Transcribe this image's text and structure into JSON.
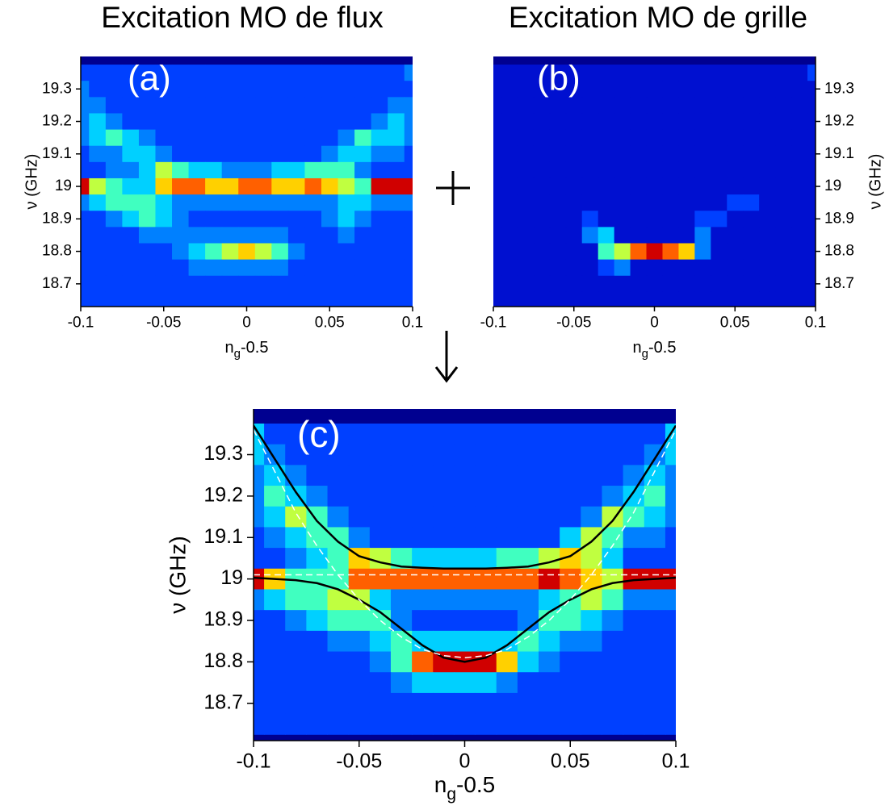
{
  "chart_data": [
    {
      "type": "heatmap",
      "title": "Excitation MO de flux",
      "panel_label": "(a)",
      "xlabel": [
        "n",
        "g",
        "-0.5"
      ],
      "ylabel": "ν (GHz)",
      "yaxis_side": "left",
      "xlim": [
        -0.1,
        0.1
      ],
      "ylim": [
        18.63,
        19.4
      ],
      "xticks": [
        -0.1,
        -0.05,
        0,
        0.05,
        0.1
      ],
      "yticks": [
        18.7,
        18.8,
        18.9,
        19,
        19.1,
        19.2,
        19.3
      ],
      "colormap": [
        "#000090",
        "#0010d0",
        "#0040ff",
        "#0080ff",
        "#00d0ff",
        "#40ffc0",
        "#c0ff40",
        "#ffd000",
        "#ff6000",
        "#d00000"
      ],
      "x": [
        -0.1,
        -0.09,
        -0.08,
        -0.07,
        -0.06,
        -0.05,
        -0.04,
        -0.03,
        -0.02,
        -0.01,
        0,
        0.01,
        0.02,
        0.03,
        0.04,
        0.05,
        0.06,
        0.07,
        0.08,
        0.09,
        0.1
      ],
      "y": [
        19.35,
        19.3,
        19.25,
        19.2,
        19.15,
        19.1,
        19.05,
        19,
        18.95,
        18.9,
        18.85,
        18.8,
        18.75,
        18.7,
        18.65
      ],
      "z": [
        [
          2,
          2,
          2,
          2,
          2,
          2,
          2,
          2,
          2,
          2,
          2,
          2,
          2,
          2,
          2,
          2,
          2,
          2,
          2,
          2,
          3
        ],
        [
          3,
          2,
          2,
          2,
          2,
          2,
          2,
          2,
          2,
          2,
          2,
          2,
          2,
          2,
          2,
          2,
          2,
          2,
          2,
          2,
          2
        ],
        [
          3,
          3,
          2,
          2,
          2,
          2,
          2,
          2,
          2,
          2,
          2,
          2,
          2,
          2,
          2,
          2,
          2,
          2,
          2,
          3,
          3
        ],
        [
          3,
          4,
          3,
          2,
          2,
          2,
          2,
          2,
          2,
          2,
          2,
          2,
          2,
          2,
          2,
          2,
          2,
          2,
          3,
          4,
          3
        ],
        [
          3,
          4,
          5,
          4,
          3,
          2,
          2,
          2,
          2,
          2,
          2,
          2,
          2,
          2,
          2,
          2,
          3,
          5,
          4,
          4,
          3
        ],
        [
          2,
          3,
          3,
          4,
          4,
          3,
          2,
          2,
          2,
          2,
          2,
          2,
          2,
          2,
          2,
          3,
          4,
          4,
          3,
          3,
          2
        ],
        [
          2,
          2,
          3,
          3,
          4,
          6,
          5,
          4,
          4,
          3,
          3,
          3,
          4,
          4,
          5,
          5,
          5,
          3,
          2,
          2,
          2
        ],
        [
          9,
          6,
          5,
          4,
          4,
          7,
          8,
          8,
          7,
          7,
          8,
          8,
          7,
          7,
          8,
          7,
          6,
          5,
          9,
          9,
          9
        ],
        [
          3,
          4,
          5,
          5,
          5,
          4,
          3,
          3,
          3,
          3,
          3,
          3,
          3,
          3,
          3,
          3,
          4,
          4,
          3,
          3,
          3
        ],
        [
          2,
          2,
          3,
          4,
          5,
          4,
          3,
          2,
          2,
          2,
          2,
          2,
          2,
          2,
          2,
          3,
          4,
          3,
          2,
          2,
          2
        ],
        [
          2,
          2,
          2,
          2,
          3,
          3,
          3,
          3,
          3,
          3,
          3,
          3,
          3,
          2,
          2,
          2,
          3,
          2,
          2,
          2,
          2
        ],
        [
          2,
          2,
          2,
          2,
          2,
          2,
          3,
          4,
          5,
          6,
          7,
          6,
          5,
          3,
          2,
          2,
          2,
          2,
          2,
          2,
          2
        ],
        [
          2,
          2,
          2,
          2,
          2,
          2,
          2,
          3,
          3,
          3,
          3,
          3,
          3,
          2,
          2,
          2,
          2,
          2,
          2,
          2,
          2
        ],
        [
          2,
          2,
          2,
          2,
          2,
          2,
          2,
          2,
          2,
          2,
          2,
          2,
          2,
          2,
          2,
          2,
          2,
          2,
          2,
          2,
          2
        ],
        [
          2,
          2,
          2,
          2,
          2,
          2,
          2,
          2,
          2,
          2,
          2,
          2,
          2,
          2,
          2,
          2,
          2,
          2,
          2,
          2,
          2
        ]
      ]
    },
    {
      "type": "heatmap",
      "title": "Excitation MO de grille",
      "panel_label": "(b)",
      "xlabel": [
        "n",
        "g",
        "-0.5"
      ],
      "ylabel": "ν (GHz)",
      "yaxis_side": "right",
      "xlim": [
        -0.1,
        0.1
      ],
      "ylim": [
        18.63,
        19.4
      ],
      "xticks": [
        -0.1,
        -0.05,
        0,
        0.05,
        0.1
      ],
      "yticks": [
        18.7,
        18.8,
        18.9,
        19,
        19.1,
        19.2,
        19.3
      ],
      "colormap": [
        "#000090",
        "#0010d0",
        "#0040ff",
        "#0080ff",
        "#00d0ff",
        "#40ffc0",
        "#c0ff40",
        "#ffd000",
        "#ff6000",
        "#d00000"
      ],
      "x": [
        -0.1,
        -0.09,
        -0.08,
        -0.07,
        -0.06,
        -0.05,
        -0.04,
        -0.03,
        -0.02,
        -0.01,
        0,
        0.01,
        0.02,
        0.03,
        0.04,
        0.05,
        0.06,
        0.07,
        0.08,
        0.09,
        0.1
      ],
      "y": [
        19.35,
        19.3,
        19.25,
        19.2,
        19.15,
        19.1,
        19.05,
        19,
        18.95,
        18.9,
        18.85,
        18.8,
        18.75,
        18.7,
        18.65
      ],
      "z": [
        [
          1,
          1,
          1,
          1,
          1,
          1,
          1,
          1,
          1,
          1,
          1,
          1,
          1,
          1,
          1,
          1,
          1,
          1,
          1,
          1,
          2
        ],
        [
          1,
          1,
          1,
          1,
          1,
          1,
          1,
          1,
          1,
          1,
          1,
          1,
          1,
          1,
          1,
          1,
          1,
          1,
          1,
          1,
          1
        ],
        [
          1,
          1,
          1,
          1,
          1,
          1,
          1,
          1,
          1,
          1,
          1,
          1,
          1,
          1,
          1,
          1,
          1,
          1,
          1,
          1,
          1
        ],
        [
          1,
          1,
          1,
          1,
          1,
          1,
          1,
          1,
          1,
          1,
          1,
          1,
          1,
          1,
          1,
          1,
          1,
          1,
          1,
          1,
          1
        ],
        [
          1,
          1,
          1,
          1,
          1,
          1,
          1,
          1,
          1,
          1,
          1,
          1,
          1,
          1,
          1,
          1,
          1,
          1,
          1,
          1,
          1
        ],
        [
          1,
          1,
          1,
          1,
          1,
          1,
          1,
          1,
          1,
          1,
          1,
          1,
          1,
          1,
          1,
          1,
          1,
          1,
          1,
          1,
          1
        ],
        [
          1,
          1,
          1,
          1,
          1,
          1,
          1,
          1,
          1,
          1,
          1,
          1,
          1,
          1,
          1,
          1,
          1,
          1,
          1,
          1,
          1
        ],
        [
          1,
          1,
          1,
          1,
          1,
          1,
          1,
          1,
          1,
          1,
          1,
          1,
          1,
          1,
          1,
          1,
          1,
          1,
          1,
          1,
          1
        ],
        [
          1,
          1,
          1,
          1,
          1,
          1,
          1,
          1,
          1,
          1,
          1,
          1,
          1,
          1,
          1,
          2,
          2,
          1,
          1,
          1,
          1
        ],
        [
          1,
          1,
          1,
          1,
          1,
          1,
          2,
          1,
          1,
          1,
          1,
          1,
          1,
          2,
          2,
          1,
          1,
          1,
          1,
          1,
          1
        ],
        [
          1,
          1,
          1,
          1,
          1,
          1,
          3,
          4,
          1,
          1,
          1,
          1,
          1,
          3,
          1,
          1,
          1,
          1,
          1,
          1,
          1
        ],
        [
          1,
          1,
          1,
          1,
          1,
          1,
          1,
          5,
          6,
          8,
          9,
          8,
          7,
          3,
          1,
          1,
          1,
          1,
          1,
          1,
          1
        ],
        [
          1,
          1,
          1,
          1,
          1,
          1,
          1,
          2,
          3,
          1,
          1,
          1,
          1,
          1,
          1,
          1,
          1,
          1,
          1,
          1,
          1
        ],
        [
          1,
          1,
          1,
          1,
          1,
          1,
          1,
          1,
          1,
          1,
          1,
          1,
          1,
          1,
          1,
          1,
          1,
          1,
          1,
          1,
          1
        ],
        [
          1,
          1,
          1,
          1,
          1,
          1,
          1,
          1,
          1,
          1,
          1,
          1,
          1,
          1,
          1,
          1,
          1,
          1,
          1,
          1,
          1
        ]
      ]
    },
    {
      "type": "heatmap",
      "panel_label": "(c)",
      "xlabel": [
        "n",
        "g",
        "-0.5"
      ],
      "ylabel": "ν (GHz)",
      "yaxis_side": "left",
      "xlim": [
        -0.1,
        0.1
      ],
      "ylim": [
        18.61,
        19.41
      ],
      "xticks": [
        -0.1,
        -0.05,
        0,
        0.05,
        0.1
      ],
      "yticks": [
        18.7,
        18.8,
        18.9,
        19,
        19.1,
        19.2,
        19.3
      ],
      "colormap": [
        "#000090",
        "#0010d0",
        "#0040ff",
        "#0080ff",
        "#00d0ff",
        "#40ffc0",
        "#c0ff40",
        "#ffd000",
        "#ff6000",
        "#d00000"
      ],
      "x": [
        -0.1,
        -0.09,
        -0.08,
        -0.07,
        -0.06,
        -0.05,
        -0.04,
        -0.03,
        -0.02,
        -0.01,
        0,
        0.01,
        0.02,
        0.03,
        0.04,
        0.05,
        0.06,
        0.07,
        0.08,
        0.09,
        0.1
      ],
      "y": [
        19.35,
        19.3,
        19.25,
        19.2,
        19.15,
        19.1,
        19.05,
        19,
        18.95,
        18.9,
        18.85,
        18.8,
        18.75,
        18.7,
        18.65
      ],
      "z": [
        [
          4,
          2,
          2,
          2,
          2,
          2,
          2,
          2,
          2,
          2,
          2,
          2,
          2,
          2,
          2,
          2,
          2,
          2,
          2,
          2,
          4
        ],
        [
          4,
          3,
          2,
          2,
          2,
          2,
          2,
          2,
          2,
          2,
          2,
          2,
          2,
          2,
          2,
          2,
          2,
          2,
          2,
          3,
          4
        ],
        [
          3,
          4,
          3,
          2,
          2,
          2,
          2,
          2,
          2,
          2,
          2,
          2,
          2,
          2,
          2,
          2,
          2,
          2,
          3,
          4,
          3
        ],
        [
          3,
          5,
          4,
          3,
          2,
          2,
          2,
          2,
          2,
          2,
          2,
          2,
          2,
          2,
          2,
          2,
          2,
          3,
          4,
          5,
          3
        ],
        [
          3,
          4,
          6,
          5,
          3,
          2,
          2,
          2,
          2,
          2,
          2,
          2,
          2,
          2,
          2,
          2,
          3,
          6,
          5,
          4,
          3
        ],
        [
          2,
          3,
          4,
          5,
          5,
          3,
          2,
          2,
          2,
          2,
          2,
          2,
          2,
          2,
          2,
          4,
          6,
          5,
          3,
          3,
          2
        ],
        [
          2,
          2,
          3,
          4,
          5,
          7,
          6,
          5,
          4,
          4,
          4,
          4,
          5,
          5,
          6,
          7,
          6,
          4,
          2,
          2,
          2
        ],
        [
          9,
          7,
          5,
          5,
          5,
          8,
          8,
          8,
          8,
          8,
          8,
          8,
          8,
          8,
          9,
          8,
          7,
          6,
          9,
          9,
          9
        ],
        [
          3,
          4,
          5,
          5,
          6,
          6,
          4,
          3,
          3,
          3,
          3,
          3,
          3,
          3,
          4,
          5,
          6,
          5,
          3,
          3,
          3
        ],
        [
          2,
          2,
          3,
          4,
          5,
          5,
          5,
          3,
          2,
          2,
          2,
          2,
          2,
          3,
          5,
          5,
          4,
          3,
          2,
          2,
          2
        ],
        [
          2,
          2,
          2,
          2,
          3,
          3,
          4,
          5,
          4,
          4,
          4,
          4,
          4,
          5,
          4,
          3,
          3,
          2,
          2,
          2,
          2
        ],
        [
          2,
          2,
          2,
          2,
          2,
          2,
          3,
          5,
          8,
          9,
          9,
          9,
          7,
          4,
          3,
          2,
          2,
          2,
          2,
          2,
          2
        ],
        [
          2,
          2,
          2,
          2,
          2,
          2,
          2,
          3,
          4,
          4,
          4,
          4,
          3,
          2,
          2,
          2,
          2,
          2,
          2,
          2,
          2
        ],
        [
          2,
          2,
          2,
          2,
          2,
          2,
          2,
          2,
          2,
          2,
          2,
          2,
          2,
          2,
          2,
          2,
          2,
          2,
          2,
          2,
          2
        ],
        [
          2,
          2,
          2,
          2,
          2,
          2,
          2,
          2,
          2,
          2,
          2,
          2,
          2,
          2,
          2,
          2,
          2,
          2,
          2,
          2,
          2
        ]
      ],
      "series": [
        {
          "color": "#000000",
          "dash": false,
          "values": [
            19.37,
            19.29,
            19.21,
            19.14,
            19.09,
            19.055,
            19.04,
            19.03,
            19.027,
            19.025,
            19.025,
            19.025,
            19.027,
            19.03,
            19.04,
            19.055,
            19.09,
            19.14,
            19.21,
            19.29,
            19.37
          ]
        },
        {
          "color": "#000000",
          "dash": false,
          "values": [
            19.003,
            19.0,
            18.997,
            18.99,
            18.975,
            18.95,
            18.92,
            18.88,
            18.84,
            18.81,
            18.8,
            18.81,
            18.84,
            18.88,
            18.92,
            18.95,
            18.975,
            18.99,
            18.997,
            19.0,
            19.003
          ]
        },
        {
          "color": "#ffffff",
          "dash": true,
          "values": [
            19.36,
            19.26,
            19.16,
            19.08,
            19.01,
            18.95,
            18.9,
            18.86,
            18.83,
            18.815,
            18.81,
            18.815,
            18.83,
            18.86,
            18.9,
            18.95,
            19.01,
            19.08,
            19.16,
            19.26,
            19.36
          ]
        },
        {
          "color": "#ffffff",
          "dash": true,
          "values": [
            19.01,
            19.01,
            19.01,
            19.01,
            19.01,
            19.01,
            19.01,
            19.01,
            19.01,
            19.01,
            19.01,
            19.01,
            19.01,
            19.01,
            19.01,
            19.01,
            19.01,
            19.01,
            19.01,
            19.01,
            19.01
          ]
        }
      ]
    }
  ]
}
